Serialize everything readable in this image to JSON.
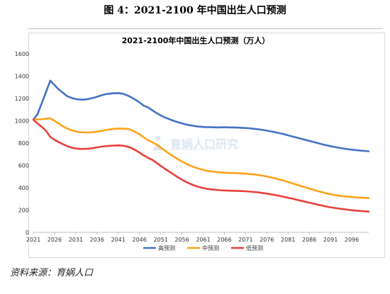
{
  "figure": {
    "caption": "图 4：2021-2100 年中国出生人口预测",
    "source": "资料来源：育娲人口"
  },
  "watermark": {
    "text": "育娲人口研究",
    "subtext": "YuWa Population Research"
  },
  "colors": {
    "high": "#4472C4",
    "mid": "#FFA31A",
    "low": "#E8403A",
    "axis": "#bfbfbf"
  },
  "chart_data": {
    "type": "line",
    "title": "2021-2100年中国出生人口预测（万人）",
    "xlabel": "",
    "ylabel": "",
    "ylim": [
      0,
      1600
    ],
    "yticks": [
      0,
      200,
      400,
      600,
      800,
      1000,
      1200,
      1400,
      1600
    ],
    "xlim": [
      2021,
      2100
    ],
    "xticks": [
      "2021",
      "2026",
      "2031",
      "2036",
      "2041",
      "2046",
      "2051",
      "2056",
      "2061",
      "2066",
      "2071",
      "2076",
      "2081",
      "2086",
      "2091",
      "2096"
    ],
    "grid": false,
    "legend_position": "bottom",
    "x": [
      2021,
      2022,
      2023,
      2024,
      2025,
      2026,
      2027,
      2028,
      2029,
      2030,
      2031,
      2032,
      2033,
      2034,
      2035,
      2036,
      2037,
      2038,
      2039,
      2040,
      2041,
      2042,
      2043,
      2044,
      2045,
      2046,
      2047,
      2048,
      2049,
      2050,
      2051,
      2052,
      2053,
      2054,
      2055,
      2056,
      2057,
      2058,
      2059,
      2060,
      2061,
      2062,
      2063,
      2064,
      2065,
      2066,
      2067,
      2068,
      2069,
      2070,
      2071,
      2072,
      2073,
      2074,
      2075,
      2076,
      2077,
      2078,
      2079,
      2080,
      2081,
      2082,
      2083,
      2084,
      2085,
      2086,
      2087,
      2088,
      2089,
      2090,
      2091,
      2092,
      2093,
      2094,
      2095,
      2096,
      2097,
      2098,
      2099,
      2100
    ],
    "series": [
      {
        "name": "高预测",
        "color": "#4472C4",
        "values": [
          1010,
          1060,
          1160,
          1260,
          1360,
          1320,
          1280,
          1250,
          1220,
          1205,
          1195,
          1190,
          1190,
          1195,
          1205,
          1215,
          1228,
          1238,
          1243,
          1247,
          1248,
          1243,
          1230,
          1212,
          1190,
          1165,
          1135,
          1120,
          1095,
          1070,
          1048,
          1030,
          1015,
          1000,
          988,
          977,
          967,
          960,
          953,
          948,
          945,
          943,
          942,
          941,
          941,
          942,
          941,
          940,
          939,
          937,
          935,
          932,
          928,
          924,
          918,
          912,
          905,
          897,
          889,
          880,
          870,
          860,
          850,
          840,
          830,
          820,
          810,
          800,
          790,
          781,
          773,
          765,
          758,
          752,
          746,
          741,
          737,
          733,
          730,
          727
        ]
      },
      {
        "name": "中预测",
        "color": "#FFA31A",
        "values": [
          1010,
          1012,
          1014,
          1018,
          1022,
          1000,
          975,
          950,
          930,
          915,
          905,
          898,
          895,
          895,
          898,
          903,
          910,
          917,
          923,
          928,
          930,
          930,
          928,
          918,
          900,
          878,
          852,
          826,
          808,
          788,
          760,
          733,
          706,
          680,
          657,
          635,
          615,
          598,
          583,
          570,
          560,
          552,
          546,
          541,
          538,
          535,
          533,
          532,
          530,
          528,
          526,
          523,
          519,
          514,
          508,
          501,
          493,
          484,
          474,
          463,
          452,
          440,
          428,
          416,
          404,
          392,
          381,
          370,
          360,
          350,
          342,
          335,
          329,
          324,
          320,
          317,
          314,
          312,
          309,
          307
        ]
      },
      {
        "name": "低预测",
        "color": "#E8403A",
        "values": [
          1010,
          975,
          945,
          910,
          855,
          830,
          808,
          790,
          773,
          760,
          752,
          748,
          748,
          750,
          755,
          762,
          768,
          773,
          776,
          778,
          780,
          778,
          770,
          758,
          738,
          715,
          690,
          668,
          650,
          624,
          596,
          570,
          545,
          520,
          495,
          472,
          452,
          434,
          420,
          407,
          397,
          390,
          385,
          381,
          378,
          376,
          374,
          373,
          372,
          370,
          368,
          365,
          362,
          358,
          353,
          347,
          341,
          334,
          327,
          319,
          310,
          302,
          293,
          284,
          275,
          266,
          257,
          248,
          240,
          232,
          225,
          219,
          213,
          208,
          203,
          199,
          195,
          192,
          189,
          186
        ]
      }
    ]
  }
}
